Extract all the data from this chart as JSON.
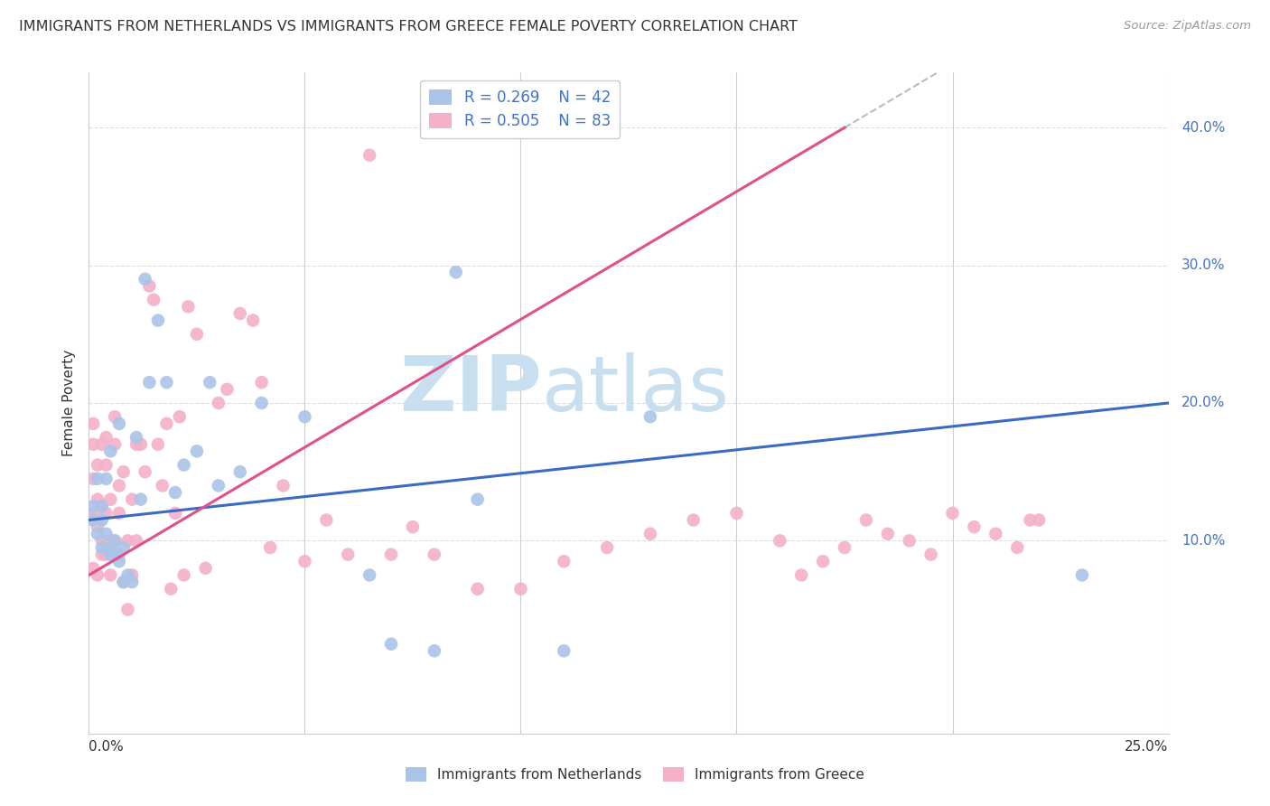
{
  "title": "IMMIGRANTS FROM NETHERLANDS VS IMMIGRANTS FROM GREECE FEMALE POVERTY CORRELATION CHART",
  "source": "Source: ZipAtlas.com",
  "ylabel": "Female Poverty",
  "y_tick_labels": [
    "10.0%",
    "20.0%",
    "30.0%",
    "40.0%"
  ],
  "y_tick_values": [
    0.1,
    0.2,
    0.3,
    0.4
  ],
  "x_range": [
    0.0,
    0.25
  ],
  "y_range": [
    -0.04,
    0.44
  ],
  "color_netherlands": "#aac4e8",
  "color_greece": "#f4b0c8",
  "trendline_netherlands": "#3a6bc4",
  "trendline_greece": "#e0508a",
  "trendline_dashed": "#bbbbbb",
  "watermark_zip": "ZIP",
  "watermark_atlas": "atlas",
  "watermark_color": "#c8dff0",
  "nl_trend_x0": 0.0,
  "nl_trend_y0": 0.115,
  "nl_trend_x1": 0.25,
  "nl_trend_y1": 0.2,
  "gr_trend_x0": 0.0,
  "gr_trend_y0": 0.075,
  "gr_trend_x1": 0.175,
  "gr_trend_y1": 0.4,
  "gr_trend_dash_x0": 0.175,
  "gr_trend_dash_x1": 0.25,
  "netherlands_x": [
    0.001,
    0.001,
    0.002,
    0.002,
    0.003,
    0.003,
    0.003,
    0.004,
    0.004,
    0.005,
    0.005,
    0.005,
    0.006,
    0.006,
    0.007,
    0.007,
    0.008,
    0.008,
    0.009,
    0.01,
    0.011,
    0.012,
    0.013,
    0.014,
    0.016,
    0.018,
    0.02,
    0.022,
    0.025,
    0.028,
    0.03,
    0.035,
    0.04,
    0.05,
    0.065,
    0.07,
    0.08,
    0.085,
    0.09,
    0.11,
    0.13,
    0.23
  ],
  "netherlands_y": [
    0.115,
    0.125,
    0.105,
    0.145,
    0.115,
    0.095,
    0.125,
    0.105,
    0.145,
    0.09,
    0.095,
    0.165,
    0.1,
    0.09,
    0.185,
    0.085,
    0.095,
    0.07,
    0.075,
    0.07,
    0.175,
    0.13,
    0.29,
    0.215,
    0.26,
    0.215,
    0.135,
    0.155,
    0.165,
    0.215,
    0.14,
    0.15,
    0.2,
    0.19,
    0.075,
    0.025,
    0.02,
    0.295,
    0.13,
    0.02,
    0.19,
    0.075
  ],
  "greece_x": [
    0.001,
    0.001,
    0.001,
    0.001,
    0.001,
    0.002,
    0.002,
    0.002,
    0.002,
    0.003,
    0.003,
    0.003,
    0.003,
    0.004,
    0.004,
    0.004,
    0.004,
    0.005,
    0.005,
    0.005,
    0.006,
    0.006,
    0.006,
    0.007,
    0.007,
    0.007,
    0.008,
    0.008,
    0.009,
    0.009,
    0.01,
    0.01,
    0.011,
    0.011,
    0.012,
    0.013,
    0.014,
    0.015,
    0.016,
    0.017,
    0.018,
    0.019,
    0.02,
    0.021,
    0.022,
    0.023,
    0.025,
    0.027,
    0.03,
    0.032,
    0.035,
    0.038,
    0.04,
    0.042,
    0.045,
    0.05,
    0.055,
    0.06,
    0.065,
    0.07,
    0.075,
    0.08,
    0.09,
    0.1,
    0.11,
    0.12,
    0.13,
    0.14,
    0.15,
    0.16,
    0.165,
    0.17,
    0.175,
    0.18,
    0.185,
    0.19,
    0.195,
    0.2,
    0.205,
    0.21,
    0.215,
    0.218,
    0.22
  ],
  "greece_y": [
    0.145,
    0.17,
    0.185,
    0.12,
    0.08,
    0.11,
    0.13,
    0.155,
    0.075,
    0.125,
    0.17,
    0.09,
    0.1,
    0.155,
    0.12,
    0.175,
    0.09,
    0.075,
    0.1,
    0.13,
    0.17,
    0.1,
    0.19,
    0.14,
    0.12,
    0.09,
    0.15,
    0.07,
    0.1,
    0.05,
    0.13,
    0.075,
    0.17,
    0.1,
    0.17,
    0.15,
    0.285,
    0.275,
    0.17,
    0.14,
    0.185,
    0.065,
    0.12,
    0.19,
    0.075,
    0.27,
    0.25,
    0.08,
    0.2,
    0.21,
    0.265,
    0.26,
    0.215,
    0.095,
    0.14,
    0.085,
    0.115,
    0.09,
    0.38,
    0.09,
    0.11,
    0.09,
    0.065,
    0.065,
    0.085,
    0.095,
    0.105,
    0.115,
    0.12,
    0.1,
    0.075,
    0.085,
    0.095,
    0.115,
    0.105,
    0.1,
    0.09,
    0.12,
    0.11,
    0.105,
    0.095,
    0.115,
    0.115
  ]
}
